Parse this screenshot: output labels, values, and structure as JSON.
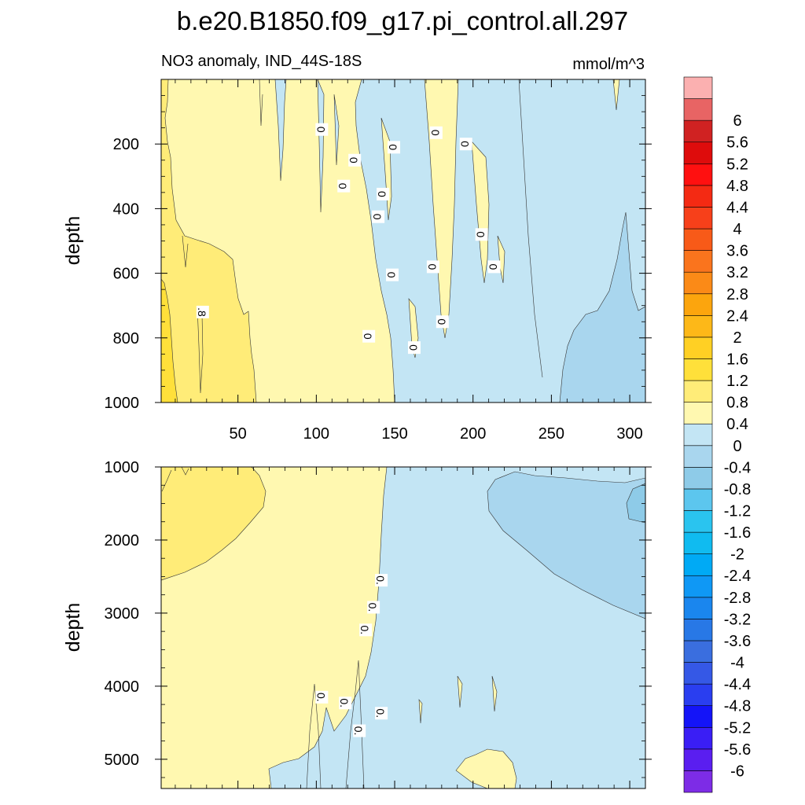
{
  "chart_data": {
    "type": "contour",
    "title": "b.e20.B1850.f09_g17.pi_control.all.297",
    "subtitle": "NO3 anomaly, IND_44S-18S",
    "units": "mmol/m^3",
    "ylabel": "depth",
    "x_ticks": [
      "50",
      "100",
      "150",
      "200",
      "250",
      "300"
    ],
    "x_tick_values": [
      50,
      100,
      150,
      200,
      250,
      300
    ],
    "xlim": [
      1,
      310
    ],
    "panels": [
      {
        "name": "upper",
        "ylim": [
          1000,
          0
        ],
        "y_ticks": [
          "200",
          "400",
          "600",
          "800",
          "1000"
        ],
        "y_tick_values": [
          200,
          400,
          600,
          800,
          1000
        ],
        "regions": [
          {
            "value_range": "0.8-1.2",
            "x": [
              1,
              12
            ],
            "depth": [
              650,
              1000
            ]
          },
          {
            "value_range": "0.4-0.8",
            "x": [
              1,
              62
            ],
            "depth": [
              0,
              1000
            ]
          },
          {
            "value_range": "0-0.4",
            "x": [
              62,
              150
            ],
            "depth": [
              0,
              1000
            ]
          },
          {
            "value_range": "-0.4-0",
            "x": [
              125,
              310
            ],
            "depth": [
              0,
              1000
            ]
          },
          {
            "value_range": "-0.8--0.4",
            "x": [
              250,
              310
            ],
            "depth": [
              650,
              1000
            ]
          }
        ],
        "contour_labels": [
          {
            "text": "0",
            "x": 103,
            "depth": 155
          },
          {
            "text": "0",
            "x": 124,
            "depth": 250
          },
          {
            "text": "0",
            "x": 117,
            "depth": 330
          },
          {
            "text": "0",
            "x": 149,
            "depth": 210
          },
          {
            "text": "0",
            "x": 142,
            "depth": 355
          },
          {
            "text": "0",
            "x": 139,
            "depth": 425
          },
          {
            "text": "0",
            "x": 176,
            "depth": 165
          },
          {
            "text": "0",
            "x": 195,
            "depth": 200
          },
          {
            "text": "0",
            "x": 205,
            "depth": 480
          },
          {
            "text": "0",
            "x": 174,
            "depth": 580
          },
          {
            "text": "0",
            "x": 213,
            "depth": 580
          },
          {
            "text": "0",
            "x": 148,
            "depth": 605
          },
          {
            "text": "0",
            "x": 180,
            "depth": 750
          },
          {
            "text": "0",
            "x": 133,
            "depth": 795
          },
          {
            "text": "0",
            "x": 162,
            "depth": 830
          },
          {
            "text": ".8",
            "x": 27,
            "depth": 720
          }
        ]
      },
      {
        "name": "lower",
        "ylim": [
          5400,
          1000
        ],
        "y_ticks": [
          "1000",
          "2000",
          "3000",
          "4000",
          "5000"
        ],
        "y_tick_values": [
          1000,
          2000,
          3000,
          4000,
          5000
        ],
        "regions": [
          {
            "value_range": "0.4-0.8",
            "x": [
              1,
              70
            ],
            "depth": [
              1000,
              2550
            ]
          },
          {
            "value_range": "0-0.4",
            "x": [
              1,
              143
            ],
            "depth": [
              1000,
              5400
            ]
          },
          {
            "value_range": "-0.4-0",
            "x": [
              143,
              310
            ],
            "depth": [
              1000,
              5400
            ]
          },
          {
            "value_range": "-0.8--0.4",
            "x": [
              210,
              310
            ],
            "depth": [
              1150,
              3100
            ]
          },
          {
            "value_range": "-1.2--0.8",
            "x": [
              295,
              310
            ],
            "depth": [
              1300,
              1800
            ]
          }
        ],
        "contour_labels": [
          {
            "text": "0.",
            "x": 141,
            "depth": 2550
          },
          {
            "text": "0.",
            "x": 136,
            "depth": 2920
          },
          {
            "text": "0.",
            "x": 131,
            "depth": 3230
          },
          {
            "text": "0.",
            "x": 103,
            "depth": 4150
          },
          {
            "text": "0.",
            "x": 118,
            "depth": 4230
          },
          {
            "text": "0.",
            "x": 127,
            "depth": 4610
          },
          {
            "text": "0.",
            "x": 141,
            "depth": 4370
          }
        ]
      }
    ],
    "colorbar": {
      "colors": [
        "#7d2ce6",
        "#5a1ef0",
        "#3a1ef5",
        "#1414f8",
        "#2a3ef0",
        "#3558e6",
        "#3a6edf",
        "#2878e6",
        "#1a86ee",
        "#0f98f5",
        "#00aaf5",
        "#10bbf0",
        "#2ac4ef",
        "#5cc6ee",
        "#8ecbe8",
        "#a9d6ee",
        "#c3e5f4",
        "#fff8b0",
        "#ffec78",
        "#ffe03a",
        "#ffd024",
        "#fdb818",
        "#fca50d",
        "#fb8a17",
        "#fa741d",
        "#f85a18",
        "#f7401a",
        "#f42a13",
        "#ff1010",
        "#de0c0c",
        "#d02222",
        "#e86464",
        "#fbb0b0"
      ],
      "labels": [
        "-6",
        "-5.6",
        "-5.2",
        "-4.8",
        "-4.4",
        "-4",
        "-3.6",
        "-3.2",
        "-2.8",
        "-2.4",
        "-2",
        "-1.6",
        "-1.2",
        "-0.8",
        "-0.4",
        "0",
        "0.4",
        "0.8",
        "1.2",
        "1.6",
        "2",
        "2.4",
        "2.8",
        "3.2",
        "3.6",
        "4",
        "4.4",
        "4.8",
        "5.2",
        "5.6",
        "6"
      ]
    }
  }
}
